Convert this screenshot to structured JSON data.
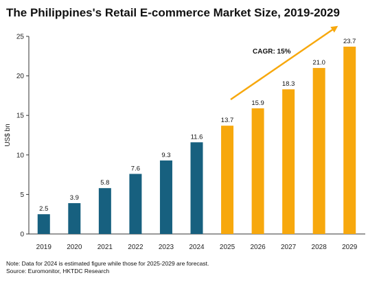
{
  "title": "The Philippines's Retail E-commerce Market Size, 2019-2029",
  "notes": {
    "note": "Note: Data for 2024 is estimated figure while those for 2025-2029 are forecast.",
    "source": "Source: Euromonitor, HKTDC Research"
  },
  "colors": {
    "actual": "#17607f",
    "forecast": "#f7a80d",
    "arrow": "#f7a80d"
  },
  "chart_data": {
    "type": "bar",
    "title": "The Philippines's Retail E-commerce Market Size, 2019-2029",
    "xlabel": "",
    "ylabel": "US$ bn",
    "ylim": [
      0,
      25
    ],
    "yticks": [
      0,
      5,
      10,
      15,
      20,
      25
    ],
    "grid": false,
    "categories": [
      "2019",
      "2020",
      "2021",
      "2022",
      "2023",
      "2024",
      "2025",
      "2026",
      "2027",
      "2028",
      "2029"
    ],
    "values": [
      2.5,
      3.9,
      5.8,
      7.6,
      9.3,
      11.6,
      13.7,
      15.9,
      18.3,
      21.0,
      23.7
    ],
    "value_labels": [
      "2.5",
      "3.9",
      "5.8",
      "7.6",
      "9.3",
      "11.6",
      "13.7",
      "15.9",
      "18.3",
      "21.0",
      "23.7"
    ],
    "segments": [
      "actual",
      "actual",
      "actual",
      "actual",
      "actual",
      "actual",
      "forecast",
      "forecast",
      "forecast",
      "forecast",
      "forecast"
    ],
    "annotation": {
      "text": "CAGR: 15%"
    }
  }
}
